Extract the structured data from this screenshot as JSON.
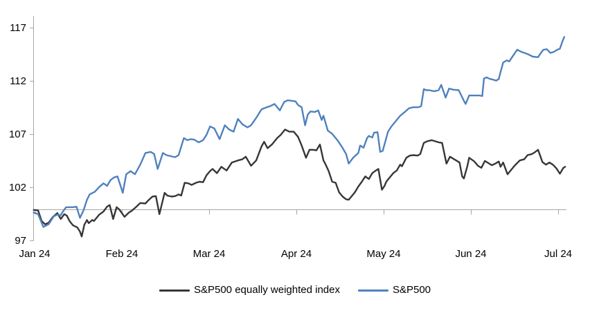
{
  "chart_data": {
    "type": "line",
    "title": "",
    "grid": "off",
    "legend_position": "bottom-center",
    "axis_color": "#A6A6A6",
    "x_axis": {
      "tick_labels": [
        "Jan 24",
        "Feb 24",
        "Mar 24",
        "Apr 24",
        "May 24",
        "Jun 24",
        "Jul 24"
      ],
      "baseline_value": 100
    },
    "y_axis": {
      "tick_labels": [
        "117",
        "112",
        "107",
        "102",
        "97"
      ],
      "ticks": [
        117,
        112,
        107,
        102,
        97
      ],
      "range": [
        97,
        118.2
      ]
    },
    "series": [
      {
        "name": "S&P500 equally weighted index",
        "color": "#363636",
        "x_unit": "months_since_jan24",
        "points": [
          [
            -0.01,
            99.95
          ],
          [
            0.04,
            99.9
          ],
          [
            0.08,
            98.9
          ],
          [
            0.12,
            98.6
          ],
          [
            0.16,
            98.75
          ],
          [
            0.21,
            99.3
          ],
          [
            0.26,
            99.65
          ],
          [
            0.3,
            99.1
          ],
          [
            0.34,
            99.55
          ],
          [
            0.37,
            99.4
          ],
          [
            0.4,
            98.9
          ],
          [
            0.44,
            98.5
          ],
          [
            0.49,
            98.3
          ],
          [
            0.52,
            97.9
          ],
          [
            0.54,
            97.45
          ],
          [
            0.57,
            98.55
          ],
          [
            0.6,
            99.0
          ],
          [
            0.62,
            98.7
          ],
          [
            0.66,
            99.0
          ],
          [
            0.68,
            98.9
          ],
          [
            0.74,
            99.5
          ],
          [
            0.79,
            99.8
          ],
          [
            0.83,
            100.25
          ],
          [
            0.86,
            100.4
          ],
          [
            0.9,
            99.1
          ],
          [
            0.94,
            100.2
          ],
          [
            0.97,
            100.0
          ],
          [
            1.03,
            99.3
          ],
          [
            1.08,
            99.7
          ],
          [
            1.11,
            99.85
          ],
          [
            1.16,
            100.2
          ],
          [
            1.21,
            100.6
          ],
          [
            1.27,
            100.55
          ],
          [
            1.31,
            100.9
          ],
          [
            1.35,
            101.2
          ],
          [
            1.39,
            101.25
          ],
          [
            1.43,
            99.55
          ],
          [
            1.49,
            101.55
          ],
          [
            1.52,
            101.3
          ],
          [
            1.57,
            101.2
          ],
          [
            1.61,
            101.25
          ],
          [
            1.65,
            101.4
          ],
          [
            1.68,
            101.3
          ],
          [
            1.72,
            102.5
          ],
          [
            1.76,
            102.45
          ],
          [
            1.8,
            102.3
          ],
          [
            1.85,
            102.5
          ],
          [
            1.89,
            102.6
          ],
          [
            1.93,
            102.55
          ],
          [
            1.97,
            103.2
          ],
          [
            2.01,
            103.6
          ],
          [
            2.04,
            103.8
          ],
          [
            2.09,
            103.4
          ],
          [
            2.14,
            104.0
          ],
          [
            2.2,
            103.65
          ],
          [
            2.26,
            104.4
          ],
          [
            2.33,
            104.6
          ],
          [
            2.38,
            104.7
          ],
          [
            2.42,
            104.95
          ],
          [
            2.48,
            104.1
          ],
          [
            2.54,
            104.6
          ],
          [
            2.6,
            105.9
          ],
          [
            2.63,
            106.35
          ],
          [
            2.67,
            105.75
          ],
          [
            2.72,
            106.1
          ],
          [
            2.78,
            106.7
          ],
          [
            2.82,
            107.0
          ],
          [
            2.87,
            107.5
          ],
          [
            2.92,
            107.3
          ],
          [
            2.97,
            107.3
          ],
          [
            3.0,
            107.0
          ],
          [
            3.02,
            106.8
          ],
          [
            3.06,
            106.0
          ],
          [
            3.11,
            104.85
          ],
          [
            3.15,
            105.6
          ],
          [
            3.19,
            105.6
          ],
          [
            3.23,
            105.55
          ],
          [
            3.27,
            106.1
          ],
          [
            3.31,
            104.6
          ],
          [
            3.33,
            104.3
          ],
          [
            3.37,
            103.6
          ],
          [
            3.41,
            102.6
          ],
          [
            3.45,
            102.5
          ],
          [
            3.49,
            101.6
          ],
          [
            3.53,
            101.2
          ],
          [
            3.57,
            100.95
          ],
          [
            3.6,
            100.9
          ],
          [
            3.63,
            101.2
          ],
          [
            3.67,
            101.6
          ],
          [
            3.71,
            102.15
          ],
          [
            3.75,
            102.6
          ],
          [
            3.79,
            103.1
          ],
          [
            3.83,
            102.85
          ],
          [
            3.87,
            103.4
          ],
          [
            3.91,
            103.65
          ],
          [
            3.94,
            103.8
          ],
          [
            3.98,
            101.85
          ],
          [
            4.01,
            102.2
          ],
          [
            4.03,
            102.6
          ],
          [
            4.07,
            103.0
          ],
          [
            4.11,
            103.4
          ],
          [
            4.15,
            103.65
          ],
          [
            4.19,
            104.2
          ],
          [
            4.21,
            104.05
          ],
          [
            4.26,
            104.85
          ],
          [
            4.3,
            105.05
          ],
          [
            4.34,
            105.1
          ],
          [
            4.39,
            105.05
          ],
          [
            4.42,
            105.2
          ],
          [
            4.46,
            106.25
          ],
          [
            4.5,
            106.4
          ],
          [
            4.55,
            106.5
          ],
          [
            4.59,
            106.4
          ],
          [
            4.63,
            106.3
          ],
          [
            4.67,
            106.25
          ],
          [
            4.72,
            104.3
          ],
          [
            4.76,
            104.95
          ],
          [
            4.8,
            104.75
          ],
          [
            4.87,
            104.4
          ],
          [
            4.9,
            103.1
          ],
          [
            4.92,
            102.9
          ],
          [
            4.96,
            104.1
          ],
          [
            4.98,
            104.85
          ],
          [
            5.04,
            104.5
          ],
          [
            5.08,
            104.1
          ],
          [
            5.12,
            103.9
          ],
          [
            5.16,
            104.55
          ],
          [
            5.2,
            104.35
          ],
          [
            5.24,
            104.15
          ],
          [
            5.28,
            104.3
          ],
          [
            5.32,
            104.5
          ],
          [
            5.34,
            104.0
          ],
          [
            5.37,
            104.4
          ],
          [
            5.42,
            103.3
          ],
          [
            5.46,
            103.7
          ],
          [
            5.5,
            104.1
          ],
          [
            5.56,
            104.6
          ],
          [
            5.61,
            104.7
          ],
          [
            5.65,
            105.1
          ],
          [
            5.7,
            105.2
          ],
          [
            5.73,
            105.35
          ],
          [
            5.77,
            105.6
          ],
          [
            5.82,
            104.45
          ],
          [
            5.86,
            104.2
          ],
          [
            5.9,
            104.4
          ],
          [
            5.94,
            104.2
          ],
          [
            5.98,
            103.85
          ],
          [
            6.02,
            103.35
          ],
          [
            6.06,
            103.9
          ],
          [
            6.08,
            104.0
          ]
        ]
      },
      {
        "name": "S&P500",
        "color": "#4F81BD",
        "x_unit": "months_since_jan24",
        "points": [
          [
            -0.01,
            99.7
          ],
          [
            0.04,
            99.55
          ],
          [
            0.1,
            98.35
          ],
          [
            0.16,
            98.6
          ],
          [
            0.22,
            99.35
          ],
          [
            0.26,
            99.5
          ],
          [
            0.3,
            99.45
          ],
          [
            0.32,
            99.75
          ],
          [
            0.36,
            100.2
          ],
          [
            0.44,
            100.2
          ],
          [
            0.48,
            100.25
          ],
          [
            0.52,
            99.2
          ],
          [
            0.56,
            99.9
          ],
          [
            0.6,
            100.9
          ],
          [
            0.63,
            101.4
          ],
          [
            0.69,
            101.65
          ],
          [
            0.74,
            102.1
          ],
          [
            0.79,
            102.45
          ],
          [
            0.83,
            102.2
          ],
          [
            0.87,
            102.75
          ],
          [
            0.91,
            103.0
          ],
          [
            0.95,
            103.1
          ],
          [
            1.01,
            101.55
          ],
          [
            1.05,
            103.3
          ],
          [
            1.1,
            103.6
          ],
          [
            1.15,
            103.3
          ],
          [
            1.21,
            104.2
          ],
          [
            1.27,
            105.3
          ],
          [
            1.33,
            105.4
          ],
          [
            1.37,
            105.2
          ],
          [
            1.41,
            103.8
          ],
          [
            1.47,
            105.3
          ],
          [
            1.51,
            105.1
          ],
          [
            1.56,
            105.0
          ],
          [
            1.61,
            104.9
          ],
          [
            1.65,
            105.1
          ],
          [
            1.71,
            106.7
          ],
          [
            1.75,
            106.5
          ],
          [
            1.79,
            106.6
          ],
          [
            1.83,
            106.55
          ],
          [
            1.88,
            106.3
          ],
          [
            1.93,
            106.5
          ],
          [
            1.97,
            107.0
          ],
          [
            2.01,
            107.8
          ],
          [
            2.06,
            107.6
          ],
          [
            2.12,
            106.6
          ],
          [
            2.18,
            107.9
          ],
          [
            2.23,
            107.5
          ],
          [
            2.28,
            107.3
          ],
          [
            2.33,
            108.5
          ],
          [
            2.38,
            108.0
          ],
          [
            2.44,
            107.7
          ],
          [
            2.48,
            107.9
          ],
          [
            2.54,
            108.6
          ],
          [
            2.6,
            109.4
          ],
          [
            2.66,
            109.6
          ],
          [
            2.7,
            109.7
          ],
          [
            2.75,
            109.9
          ],
          [
            2.81,
            109.3
          ],
          [
            2.86,
            110.1
          ],
          [
            2.9,
            110.25
          ],
          [
            2.95,
            110.2
          ],
          [
            2.99,
            110.15
          ],
          [
            3.02,
            109.8
          ],
          [
            3.06,
            109.6
          ],
          [
            3.1,
            107.9
          ],
          [
            3.13,
            108.9
          ],
          [
            3.16,
            109.2
          ],
          [
            3.21,
            109.15
          ],
          [
            3.25,
            109.3
          ],
          [
            3.29,
            108.4
          ],
          [
            3.31,
            108.8
          ],
          [
            3.36,
            107.4
          ],
          [
            3.41,
            107.1
          ],
          [
            3.47,
            106.5
          ],
          [
            3.52,
            105.9
          ],
          [
            3.57,
            105.2
          ],
          [
            3.6,
            104.3
          ],
          [
            3.65,
            104.85
          ],
          [
            3.71,
            105.3
          ],
          [
            3.73,
            106.0
          ],
          [
            3.77,
            105.8
          ],
          [
            3.81,
            106.7
          ],
          [
            3.83,
            106.9
          ],
          [
            3.87,
            106.75
          ],
          [
            3.89,
            107.2
          ],
          [
            3.93,
            107.25
          ],
          [
            3.96,
            105.4
          ],
          [
            3.99,
            105.5
          ],
          [
            4.05,
            107.3
          ],
          [
            4.09,
            107.8
          ],
          [
            4.14,
            108.3
          ],
          [
            4.19,
            108.8
          ],
          [
            4.25,
            109.2
          ],
          [
            4.29,
            109.5
          ],
          [
            4.34,
            109.6
          ],
          [
            4.4,
            109.6
          ],
          [
            4.43,
            109.7
          ],
          [
            4.46,
            111.3
          ],
          [
            4.49,
            111.2
          ],
          [
            4.52,
            111.2
          ],
          [
            4.58,
            111.1
          ],
          [
            4.63,
            111.2
          ],
          [
            4.66,
            111.7
          ],
          [
            4.71,
            110.5
          ],
          [
            4.75,
            111.35
          ],
          [
            4.8,
            111.25
          ],
          [
            4.86,
            111.2
          ],
          [
            4.92,
            110.2
          ],
          [
            4.94,
            109.9
          ],
          [
            4.98,
            110.7
          ],
          [
            5.04,
            110.7
          ],
          [
            5.1,
            110.7
          ],
          [
            5.13,
            110.65
          ],
          [
            5.15,
            112.3
          ],
          [
            5.18,
            112.4
          ],
          [
            5.22,
            112.25
          ],
          [
            5.25,
            112.2
          ],
          [
            5.29,
            112.1
          ],
          [
            5.32,
            112.25
          ],
          [
            5.34,
            112.9
          ],
          [
            5.37,
            113.8
          ],
          [
            5.41,
            114.0
          ],
          [
            5.44,
            113.9
          ],
          [
            5.48,
            114.4
          ],
          [
            5.53,
            115.0
          ],
          [
            5.58,
            114.8
          ],
          [
            5.65,
            114.6
          ],
          [
            5.71,
            114.35
          ],
          [
            5.77,
            114.3
          ],
          [
            5.79,
            114.55
          ],
          [
            5.83,
            115.0
          ],
          [
            5.87,
            115.05
          ],
          [
            5.91,
            114.7
          ],
          [
            5.95,
            114.8
          ],
          [
            5.99,
            115.0
          ],
          [
            6.02,
            115.1
          ],
          [
            6.05,
            115.8
          ],
          [
            6.07,
            116.2
          ]
        ]
      }
    ]
  }
}
